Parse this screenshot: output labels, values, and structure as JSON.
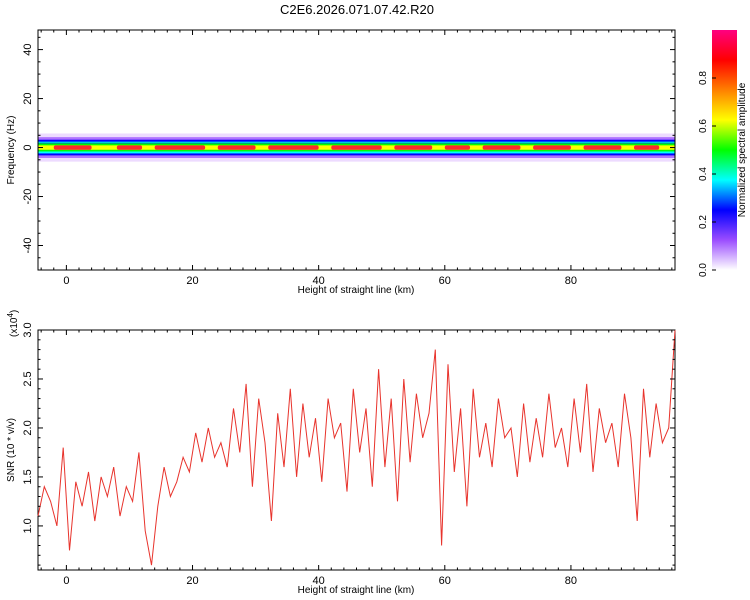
{
  "title": "C2E6.2026.071.07.42.R20",
  "chart_data": [
    {
      "type": "heatmap",
      "xlabel": "Height of straight line (km)",
      "ylabel": "Frequency (Hz)",
      "xlim": [
        -4.5,
        96.5
      ],
      "ylim": [
        -50,
        48
      ],
      "xticks": [
        0,
        20,
        40,
        60,
        80
      ],
      "yticks": [
        -40,
        -20,
        0,
        20,
        40
      ],
      "band": {
        "center_frequency": 0,
        "core_half_width": 2,
        "halo_half_width": 5,
        "peak_amplitude_segments_km": [
          [
            -2,
            4
          ],
          [
            8,
            12
          ],
          [
            14,
            22
          ],
          [
            24,
            30
          ],
          [
            32,
            40
          ],
          [
            42,
            50
          ],
          [
            52,
            58
          ],
          [
            60,
            64
          ],
          [
            66,
            72
          ],
          [
            74,
            80
          ],
          [
            82,
            88
          ],
          [
            90,
            94
          ]
        ]
      },
      "colorbar": {
        "label": "Normalized spectral amplitude",
        "range": [
          0.0,
          1.0
        ],
        "ticks": [
          "0.0",
          "0.2",
          "0.4",
          "0.6",
          "0.8"
        ],
        "colors": [
          "#ffffff",
          "#9b4dff",
          "#0000ff",
          "#00ffff",
          "#00ff00",
          "#ffff00",
          "#ff8000",
          "#ff0000",
          "#ff0080"
        ]
      },
      "grid": false
    },
    {
      "type": "line",
      "xlabel": "Height of straight line (km)",
      "ylabel": "SNR (10 * v/v)",
      "multiplier_label": "(x10",
      "multiplier_exponent": "4",
      "ytick_labels": [
        "1.0",
        "1.5",
        "2.0",
        "2.5",
        "3.0"
      ],
      "xticks": [
        0,
        20,
        40,
        60,
        80
      ],
      "yticks": [
        1.0,
        1.5,
        2.0,
        2.5,
        3.0
      ],
      "xlim": [
        -4.5,
        96.5
      ],
      "ylim": [
        0.55,
        3.0
      ],
      "color": "#e8332c",
      "grid": false,
      "x": [
        -4.5,
        -3.5,
        -2.5,
        -1.5,
        -0.5,
        0.5,
        1.5,
        2.5,
        3.5,
        4.5,
        5.5,
        6.5,
        7.5,
        8.5,
        9.5,
        10.5,
        11.5,
        12.5,
        13.5,
        14.5,
        15.5,
        16.5,
        17.5,
        18.5,
        19.5,
        20.5,
        21.5,
        22.5,
        23.5,
        24.5,
        25.5,
        26.5,
        27.5,
        28.5,
        29.5,
        30.5,
        31.5,
        32.5,
        33.5,
        34.5,
        35.5,
        36.5,
        37.5,
        38.5,
        39.5,
        40.5,
        41.5,
        42.5,
        43.5,
        44.5,
        45.5,
        46.5,
        47.5,
        48.5,
        49.5,
        50.5,
        51.5,
        52.5,
        53.5,
        54.5,
        55.5,
        56.5,
        57.5,
        58.5,
        59.5,
        60.5,
        61.5,
        62.5,
        63.5,
        64.5,
        65.5,
        66.5,
        67.5,
        68.5,
        69.5,
        70.5,
        71.5,
        72.5,
        73.5,
        74.5,
        75.5,
        76.5,
        77.5,
        78.5,
        79.5,
        80.5,
        81.5,
        82.5,
        83.5,
        84.5,
        85.5,
        86.5,
        87.5,
        88.5,
        89.5,
        90.5,
        91.5,
        92.5,
        93.5,
        94.5,
        95.5,
        96.5
      ],
      "y": [
        1.1,
        1.4,
        1.25,
        1.0,
        1.8,
        0.75,
        1.45,
        1.2,
        1.55,
        1.05,
        1.5,
        1.3,
        1.6,
        1.1,
        1.4,
        1.25,
        1.75,
        0.95,
        0.6,
        1.2,
        1.6,
        1.3,
        1.45,
        1.7,
        1.55,
        1.95,
        1.65,
        2.0,
        1.7,
        1.85,
        1.6,
        2.2,
        1.75,
        2.45,
        1.4,
        2.3,
        1.85,
        1.05,
        2.15,
        1.6,
        2.4,
        1.5,
        2.25,
        1.7,
        2.1,
        1.45,
        2.3,
        1.9,
        2.05,
        1.35,
        2.4,
        1.75,
        2.2,
        1.4,
        2.6,
        1.6,
        2.3,
        1.25,
        2.5,
        1.65,
        2.35,
        1.9,
        2.15,
        2.8,
        0.8,
        2.65,
        1.55,
        2.2,
        1.2,
        2.4,
        1.7,
        2.05,
        1.6,
        2.3,
        1.9,
        2.0,
        1.5,
        2.25,
        1.65,
        2.1,
        1.7,
        2.35,
        1.8,
        2.0,
        1.6,
        2.3,
        1.75,
        2.45,
        1.55,
        2.2,
        1.85,
        2.05,
        1.6,
        2.35,
        1.9,
        1.05,
        2.4,
        1.7,
        2.25,
        1.85,
        2.0,
        3.0
      ]
    }
  ]
}
